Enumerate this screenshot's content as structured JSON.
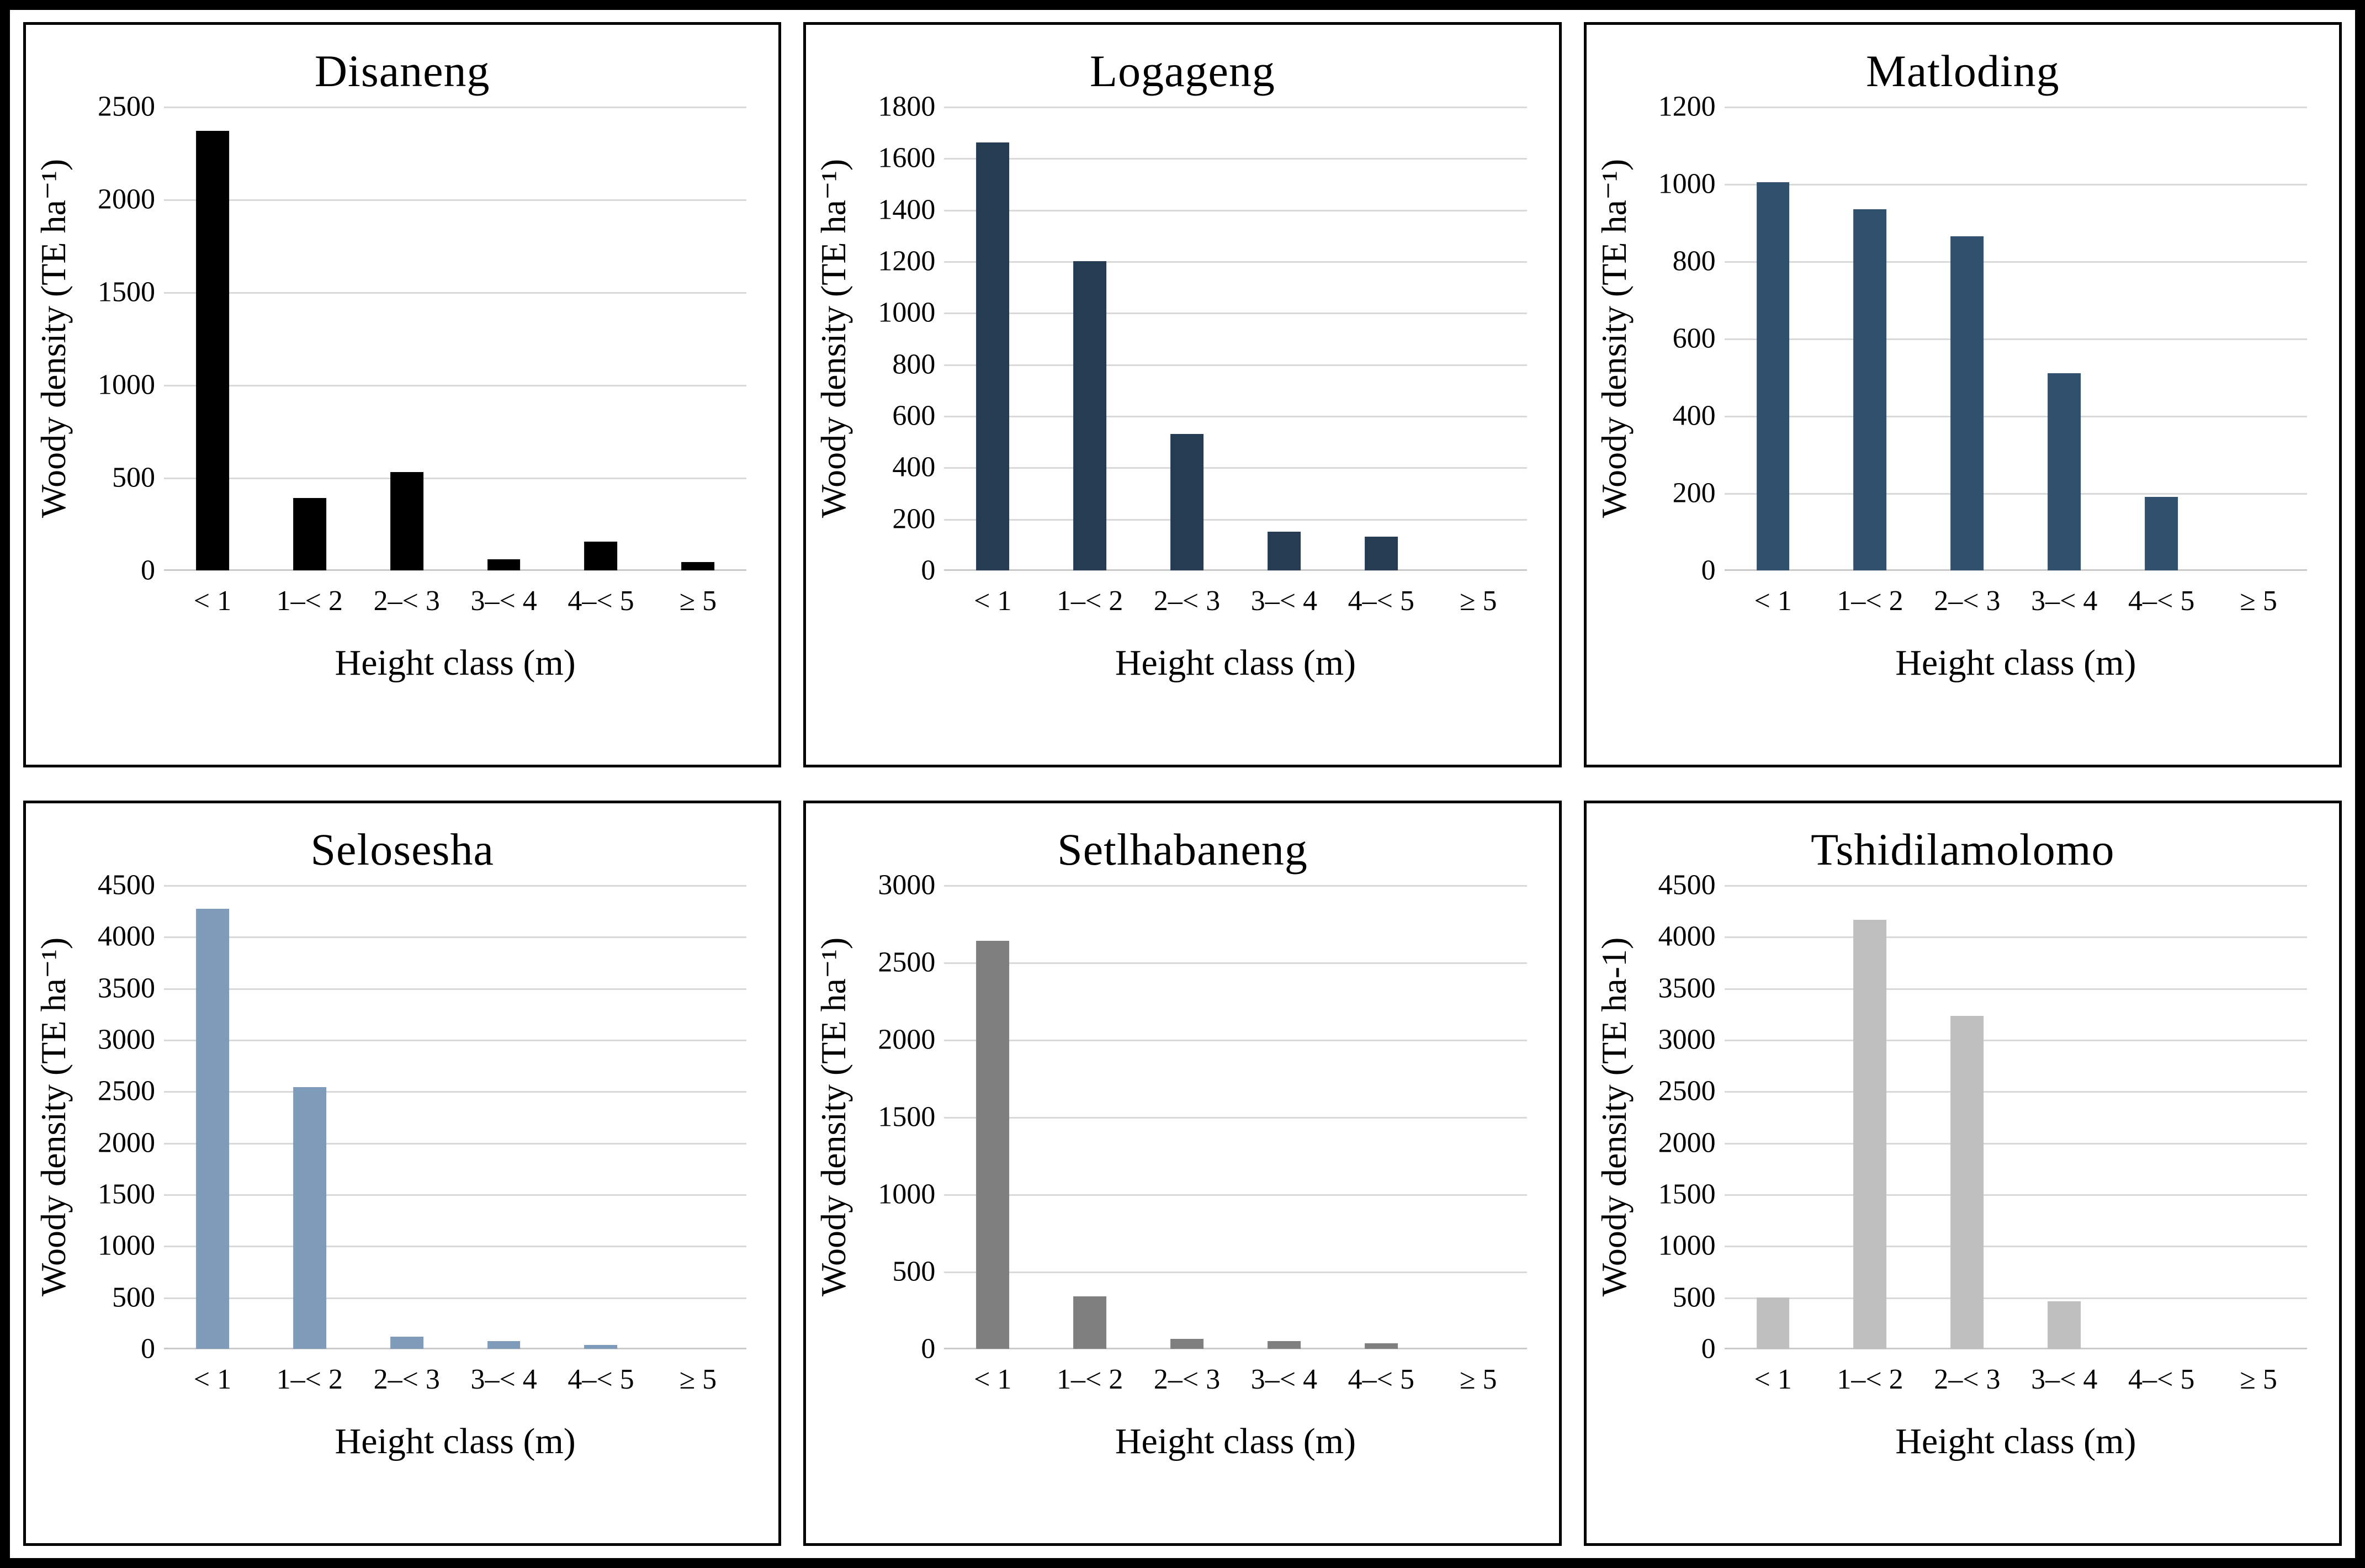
{
  "figure": {
    "frame_color": "#000000",
    "panel_border_color": "#000000",
    "background": "#ffffff",
    "gridline_color": "#D9D9D9"
  },
  "chart_data": [
    {
      "type": "bar",
      "title": "Disaneng",
      "xlabel": "Height class (m)",
      "ylabel": "Woody density (TE ha⁻¹)",
      "categories": [
        "< 1",
        "1–< 2",
        "2–< 3",
        "3–< 4",
        "4–< 5",
        "≥ 5"
      ],
      "values": [
        2370,
        390,
        530,
        60,
        155,
        45
      ],
      "ylim": [
        0,
        2500
      ],
      "ytick_step": 500,
      "bar_color": "#000000",
      "grid": true,
      "legend": "none"
    },
    {
      "type": "bar",
      "title": "Logageng",
      "xlabel": "Height class (m)",
      "ylabel": "Woody density (TE ha⁻¹)",
      "categories": [
        "< 1",
        "1–< 2",
        "2–< 3",
        "3–< 4",
        "4–< 5",
        "≥ 5"
      ],
      "values": [
        1660,
        1200,
        530,
        150,
        130,
        0
      ],
      "ylim": [
        0,
        1800
      ],
      "ytick_step": 200,
      "bar_color": "#253C53",
      "grid": true,
      "legend": "none"
    },
    {
      "type": "bar",
      "title": "Matloding",
      "xlabel": "Height class (m)",
      "ylabel": "Woody density (TE ha⁻¹)",
      "categories": [
        "< 1",
        "1–< 2",
        "2–< 3",
        "3–< 4",
        "4–< 5",
        "≥ 5"
      ],
      "values": [
        1005,
        935,
        865,
        510,
        190,
        0
      ],
      "ylim": [
        0,
        1200
      ],
      "ytick_step": 200,
      "bar_color": "#31506D",
      "grid": true,
      "legend": "none"
    },
    {
      "type": "bar",
      "title": "Selosesha",
      "xlabel": "Height class (m)",
      "ylabel": "Woody density (TE ha⁻¹)",
      "categories": [
        "< 1",
        "1–< 2",
        "2–< 3",
        "3–< 4",
        "4–< 5",
        "≥ 5"
      ],
      "values": [
        4270,
        2540,
        120,
        75,
        35,
        0
      ],
      "ylim": [
        0,
        4500
      ],
      "ytick_step": 500,
      "bar_color": "#7E9CBA",
      "grid": true,
      "legend": "none"
    },
    {
      "type": "bar",
      "title": "Setlhabaneng",
      "xlabel": "Height class (m)",
      "ylabel": "Woody density (TE ha⁻¹)",
      "categories": [
        "< 1",
        "1–< 2",
        "2–< 3",
        "3–< 4",
        "4–< 5",
        "≥ 5"
      ],
      "values": [
        2640,
        340,
        65,
        50,
        35,
        0
      ],
      "ylim": [
        0,
        3000
      ],
      "ytick_step": 500,
      "bar_color": "#7F7F7F",
      "grid": true,
      "legend": "none"
    },
    {
      "type": "bar",
      "title": "Tshidilamolomo",
      "xlabel": "Height class (m)",
      "ylabel": "Woody density (TE ha-1)",
      "categories": [
        "< 1",
        "1–< 2",
        "2–< 3",
        "3–< 4",
        "4–< 5",
        "≥ 5"
      ],
      "values": [
        500,
        4160,
        3230,
        460,
        0,
        0
      ],
      "ylim": [
        0,
        4500
      ],
      "ytick_step": 500,
      "bar_color": "#BFBFBF",
      "grid": true,
      "legend": "none"
    }
  ]
}
